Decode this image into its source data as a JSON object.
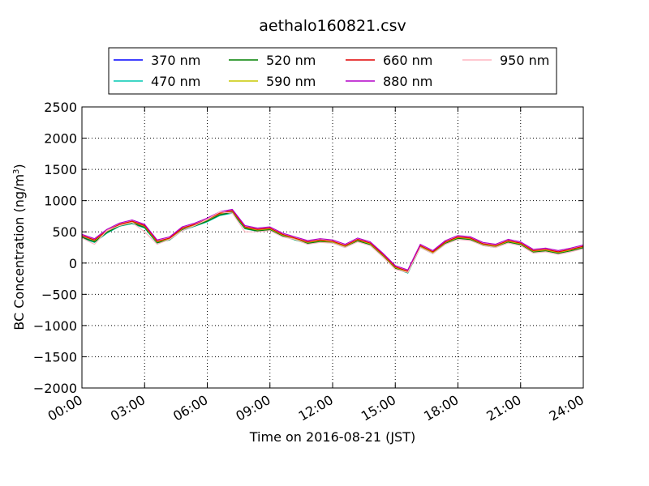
{
  "chart_data": {
    "type": "line",
    "title": "aethalo160821.csv",
    "xlabel": "Time on 2016-08-21 (JST)",
    "ylabel_main": "BC Concentration (ng/m",
    "ylabel_sup": "3",
    "ylabel_tail": ")",
    "xlim_hours": [
      0,
      24
    ],
    "ylim": [
      -2000,
      2500
    ],
    "x_ticks": [
      {
        "hour": 0,
        "label": "00:00"
      },
      {
        "hour": 3,
        "label": "03:00"
      },
      {
        "hour": 6,
        "label": "06:00"
      },
      {
        "hour": 9,
        "label": "09:00"
      },
      {
        "hour": 12,
        "label": "12:00"
      },
      {
        "hour": 15,
        "label": "15:00"
      },
      {
        "hour": 18,
        "label": "18:00"
      },
      {
        "hour": 21,
        "label": "21:00"
      },
      {
        "hour": 24,
        "label": "24:00"
      }
    ],
    "y_ticks": [
      {
        "value": 2500,
        "label": "2500"
      },
      {
        "value": 2000,
        "label": "2000"
      },
      {
        "value": 1500,
        "label": "1500"
      },
      {
        "value": 1000,
        "label": "1000"
      },
      {
        "value": 500,
        "label": "500"
      },
      {
        "value": 0,
        "label": "0"
      },
      {
        "value": -500,
        "label": "−500"
      },
      {
        "value": -1000,
        "label": "−1000"
      },
      {
        "value": -1500,
        "label": "−1500"
      },
      {
        "value": -2000,
        "label": "−2000"
      }
    ],
    "grid": true,
    "legend_position": "top",
    "series": [
      {
        "name": "370 nm",
        "color": "#0000ff",
        "points": [
          [
            0.0,
            420
          ],
          [
            0.6,
            350
          ],
          [
            1.2,
            500
          ],
          [
            1.8,
            600
          ],
          [
            2.4,
            650
          ],
          [
            3.0,
            580
          ],
          [
            3.6,
            330
          ],
          [
            4.2,
            380
          ],
          [
            4.8,
            540
          ],
          [
            5.4,
            600
          ],
          [
            6.0,
            680
          ],
          [
            6.6,
            780
          ],
          [
            7.2,
            820
          ],
          [
            7.8,
            560
          ],
          [
            8.4,
            520
          ],
          [
            9.0,
            540
          ],
          [
            9.6,
            440
          ],
          [
            10.2,
            380
          ],
          [
            10.8,
            320
          ],
          [
            11.4,
            350
          ],
          [
            12.0,
            330
          ],
          [
            12.6,
            260
          ],
          [
            13.2,
            360
          ],
          [
            13.8,
            300
          ],
          [
            14.4,
            120
          ],
          [
            15.0,
            -80
          ],
          [
            15.6,
            -150
          ],
          [
            16.2,
            260
          ],
          [
            16.8,
            160
          ],
          [
            17.4,
            320
          ],
          [
            18.0,
            400
          ],
          [
            18.6,
            380
          ],
          [
            19.2,
            290
          ],
          [
            19.8,
            260
          ],
          [
            20.4,
            340
          ],
          [
            21.0,
            300
          ],
          [
            21.6,
            180
          ],
          [
            22.2,
            200
          ],
          [
            22.8,
            160
          ],
          [
            23.4,
            200
          ],
          [
            24.0,
            250
          ]
        ]
      },
      {
        "name": "470 nm",
        "color": "#00c8b4",
        "points": [
          [
            0.0,
            400
          ],
          [
            0.6,
            330
          ],
          [
            1.2,
            480
          ],
          [
            1.8,
            590
          ],
          [
            2.4,
            630
          ],
          [
            3.0,
            560
          ],
          [
            3.6,
            320
          ],
          [
            4.2,
            370
          ],
          [
            4.8,
            520
          ],
          [
            5.4,
            590
          ],
          [
            6.0,
            660
          ],
          [
            6.6,
            760
          ],
          [
            7.2,
            800
          ],
          [
            7.8,
            550
          ],
          [
            8.4,
            510
          ],
          [
            9.0,
            530
          ],
          [
            9.6,
            430
          ],
          [
            10.2,
            370
          ],
          [
            10.8,
            310
          ],
          [
            11.4,
            340
          ],
          [
            12.0,
            320
          ],
          [
            12.6,
            250
          ],
          [
            13.2,
            350
          ],
          [
            13.8,
            290
          ],
          [
            14.4,
            110
          ],
          [
            15.0,
            -90
          ],
          [
            15.6,
            -160
          ],
          [
            16.2,
            250
          ],
          [
            16.8,
            150
          ],
          [
            17.4,
            310
          ],
          [
            18.0,
            390
          ],
          [
            18.6,
            370
          ],
          [
            19.2,
            280
          ],
          [
            19.8,
            250
          ],
          [
            20.4,
            330
          ],
          [
            21.0,
            290
          ],
          [
            21.6,
            170
          ],
          [
            22.2,
            190
          ],
          [
            22.8,
            150
          ],
          [
            23.4,
            190
          ],
          [
            24.0,
            240
          ]
        ]
      },
      {
        "name": "520 nm",
        "color": "#008000",
        "points": [
          [
            0.0,
            410
          ],
          [
            0.6,
            340
          ],
          [
            1.2,
            490
          ],
          [
            1.8,
            595
          ],
          [
            2.4,
            640
          ],
          [
            3.0,
            570
          ],
          [
            3.6,
            325
          ],
          [
            4.2,
            375
          ],
          [
            4.8,
            530
          ],
          [
            5.4,
            595
          ],
          [
            6.0,
            670
          ],
          [
            6.6,
            770
          ],
          [
            7.2,
            810
          ],
          [
            7.8,
            555
          ],
          [
            8.4,
            515
          ],
          [
            9.0,
            535
          ],
          [
            9.6,
            435
          ],
          [
            10.2,
            375
          ],
          [
            10.8,
            315
          ],
          [
            11.4,
            345
          ],
          [
            12.0,
            325
          ],
          [
            12.6,
            255
          ],
          [
            13.2,
            355
          ],
          [
            13.8,
            295
          ],
          [
            14.4,
            115
          ],
          [
            15.0,
            -85
          ],
          [
            15.6,
            -155
          ],
          [
            16.2,
            255
          ],
          [
            16.8,
            155
          ],
          [
            17.4,
            315
          ],
          [
            18.0,
            395
          ],
          [
            18.6,
            375
          ],
          [
            19.2,
            285
          ],
          [
            19.8,
            255
          ],
          [
            20.4,
            335
          ],
          [
            21.0,
            295
          ],
          [
            21.6,
            175
          ],
          [
            22.2,
            195
          ],
          [
            22.8,
            155
          ],
          [
            23.4,
            195
          ],
          [
            24.0,
            245
          ]
        ]
      },
      {
        "name": "590 nm",
        "color": "#c8c800",
        "points": [
          [
            0.0,
            430
          ],
          [
            0.6,
            360
          ],
          [
            1.2,
            510
          ],
          [
            1.8,
            610
          ],
          [
            2.4,
            660
          ],
          [
            3.0,
            590
          ],
          [
            3.6,
            340
          ],
          [
            4.2,
            390
          ],
          [
            4.8,
            550
          ],
          [
            5.4,
            610
          ],
          [
            6.0,
            690
          ],
          [
            6.6,
            790
          ],
          [
            7.2,
            830
          ],
          [
            7.8,
            570
          ],
          [
            8.4,
            530
          ],
          [
            9.0,
            550
          ],
          [
            9.6,
            450
          ],
          [
            10.2,
            390
          ],
          [
            10.8,
            330
          ],
          [
            11.4,
            360
          ],
          [
            12.0,
            340
          ],
          [
            12.6,
            270
          ],
          [
            13.2,
            370
          ],
          [
            13.8,
            310
          ],
          [
            14.4,
            130
          ],
          [
            15.0,
            -70
          ],
          [
            15.6,
            -140
          ],
          [
            16.2,
            270
          ],
          [
            16.8,
            170
          ],
          [
            17.4,
            330
          ],
          [
            18.0,
            410
          ],
          [
            18.6,
            390
          ],
          [
            19.2,
            300
          ],
          [
            19.8,
            270
          ],
          [
            20.4,
            350
          ],
          [
            21.0,
            310
          ],
          [
            21.6,
            190
          ],
          [
            22.2,
            210
          ],
          [
            22.8,
            170
          ],
          [
            23.4,
            210
          ],
          [
            24.0,
            260
          ]
        ]
      },
      {
        "name": "660 nm",
        "color": "#e00000",
        "points": [
          [
            0.0,
            440
          ],
          [
            0.6,
            370
          ],
          [
            1.2,
            520
          ],
          [
            1.8,
            620
          ],
          [
            2.4,
            670
          ],
          [
            3.0,
            600
          ],
          [
            3.6,
            350
          ],
          [
            4.2,
            400
          ],
          [
            4.8,
            560
          ],
          [
            5.4,
            620
          ],
          [
            6.0,
            700
          ],
          [
            6.6,
            800
          ],
          [
            7.2,
            840
          ],
          [
            7.8,
            580
          ],
          [
            8.4,
            540
          ],
          [
            9.0,
            560
          ],
          [
            9.6,
            460
          ],
          [
            10.2,
            400
          ],
          [
            10.8,
            340
          ],
          [
            11.4,
            370
          ],
          [
            12.0,
            350
          ],
          [
            12.6,
            280
          ],
          [
            13.2,
            380
          ],
          [
            13.8,
            320
          ],
          [
            14.4,
            140
          ],
          [
            15.0,
            -60
          ],
          [
            15.6,
            -130
          ],
          [
            16.2,
            280
          ],
          [
            16.8,
            180
          ],
          [
            17.4,
            340
          ],
          [
            18.0,
            420
          ],
          [
            18.6,
            400
          ],
          [
            19.2,
            310
          ],
          [
            19.8,
            280
          ],
          [
            20.4,
            360
          ],
          [
            21.0,
            320
          ],
          [
            21.6,
            200
          ],
          [
            22.2,
            220
          ],
          [
            22.8,
            180
          ],
          [
            23.4,
            220
          ],
          [
            24.0,
            270
          ]
        ]
      },
      {
        "name": "880 nm",
        "color": "#b400c8",
        "points": [
          [
            0.0,
            460
          ],
          [
            0.6,
            390
          ],
          [
            1.2,
            540
          ],
          [
            1.8,
            640
          ],
          [
            2.4,
            690
          ],
          [
            3.0,
            620
          ],
          [
            3.6,
            370
          ],
          [
            4.2,
            420
          ],
          [
            4.8,
            580
          ],
          [
            5.4,
            640
          ],
          [
            6.0,
            720
          ],
          [
            6.6,
            820
          ],
          [
            7.2,
            860
          ],
          [
            7.8,
            600
          ],
          [
            8.4,
            560
          ],
          [
            9.0,
            580
          ],
          [
            9.6,
            480
          ],
          [
            10.2,
            420
          ],
          [
            10.8,
            360
          ],
          [
            11.4,
            390
          ],
          [
            12.0,
            370
          ],
          [
            12.6,
            300
          ],
          [
            13.2,
            400
          ],
          [
            13.8,
            340
          ],
          [
            14.4,
            160
          ],
          [
            15.0,
            -40
          ],
          [
            15.6,
            -110
          ],
          [
            16.2,
            300
          ],
          [
            16.8,
            200
          ],
          [
            17.4,
            360
          ],
          [
            18.0,
            440
          ],
          [
            18.6,
            420
          ],
          [
            19.2,
            330
          ],
          [
            19.8,
            300
          ],
          [
            20.4,
            380
          ],
          [
            21.0,
            340
          ],
          [
            21.6,
            220
          ],
          [
            22.2,
            240
          ],
          [
            22.8,
            200
          ],
          [
            23.4,
            240
          ],
          [
            24.0,
            290
          ]
        ]
      },
      {
        "name": "950 nm",
        "color": "#ffb6c1",
        "points": [
          [
            0.0,
            400
          ],
          [
            0.6,
            300
          ],
          [
            1.2,
            520
          ],
          [
            1.8,
            600
          ],
          [
            2.4,
            650
          ],
          [
            3.0,
            500
          ],
          [
            3.6,
            300
          ],
          [
            4.2,
            380
          ],
          [
            4.8,
            520
          ],
          [
            5.4,
            600
          ],
          [
            6.0,
            700
          ],
          [
            6.6,
            820
          ],
          [
            7.2,
            800
          ],
          [
            7.8,
            500
          ],
          [
            8.4,
            500
          ],
          [
            9.0,
            520
          ],
          [
            9.6,
            420
          ],
          [
            10.2,
            380
          ],
          [
            10.8,
            300
          ],
          [
            11.4,
            330
          ],
          [
            12.0,
            320
          ],
          [
            12.6,
            250
          ],
          [
            13.2,
            340
          ],
          [
            13.8,
            280
          ],
          [
            14.4,
            100
          ],
          [
            15.0,
            -100
          ],
          [
            15.6,
            -150
          ],
          [
            16.2,
            250
          ],
          [
            16.8,
            150
          ],
          [
            17.4,
            300
          ],
          [
            18.0,
            380
          ],
          [
            18.6,
            360
          ],
          [
            19.2,
            280
          ],
          [
            19.8,
            250
          ],
          [
            20.4,
            320
          ],
          [
            21.0,
            280
          ],
          [
            21.6,
            160
          ],
          [
            22.2,
            180
          ],
          [
            22.8,
            140
          ],
          [
            23.4,
            180
          ],
          [
            24.0,
            230
          ]
        ]
      }
    ]
  }
}
